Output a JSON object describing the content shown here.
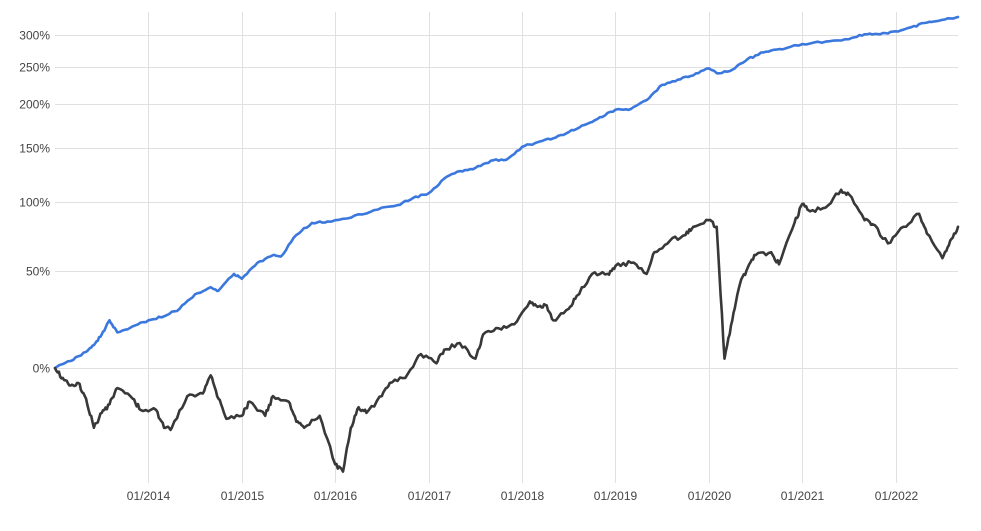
{
  "chart_data": {
    "type": "line",
    "y_scale": "log (1 + return)",
    "grid": true,
    "legend": "none",
    "x_range": [
      "2013-01",
      "2022-09"
    ],
    "y_range_pct": [
      -38,
      340
    ],
    "x_ticks": [
      "01/2014",
      "01/2015",
      "01/2016",
      "01/2017",
      "01/2018",
      "01/2019",
      "01/2020",
      "01/2021",
      "01/2022"
    ],
    "y_ticks": [
      "0%",
      "50%",
      "100%",
      "150%",
      "200%",
      "250%",
      "300%"
    ],
    "series": [
      {
        "color": "#3b78de",
        "points": [
          [
            "2013-01",
            0
          ],
          [
            "2013-03",
            3
          ],
          [
            "2013-05",
            7
          ],
          [
            "2013-06",
            10
          ],
          [
            "2013-07",
            15
          ],
          [
            "2013-08",
            22
          ],
          [
            "2013-09",
            16
          ],
          [
            "2013-11",
            19
          ],
          [
            "2014-01",
            22
          ],
          [
            "2014-03",
            24
          ],
          [
            "2014-05",
            28
          ],
          [
            "2014-07",
            36
          ],
          [
            "2014-09",
            40
          ],
          [
            "2014-10",
            38
          ],
          [
            "2014-12",
            48
          ],
          [
            "2015-01",
            45
          ],
          [
            "2015-03",
            55
          ],
          [
            "2015-05",
            60
          ],
          [
            "2015-06",
            59
          ],
          [
            "2015-08",
            74
          ],
          [
            "2015-10",
            83
          ],
          [
            "2015-12",
            84
          ],
          [
            "2016-03",
            87
          ],
          [
            "2016-06",
            93
          ],
          [
            "2016-09",
            97
          ],
          [
            "2016-11",
            103
          ],
          [
            "2017-01",
            107
          ],
          [
            "2017-03",
            120
          ],
          [
            "2017-05",
            127
          ],
          [
            "2017-07",
            130
          ],
          [
            "2017-09",
            137
          ],
          [
            "2017-11",
            138
          ],
          [
            "2018-01",
            151
          ],
          [
            "2018-03",
            156
          ],
          [
            "2018-05",
            160
          ],
          [
            "2018-07",
            167
          ],
          [
            "2018-09",
            175
          ],
          [
            "2018-11",
            184
          ],
          [
            "2019-01",
            193
          ],
          [
            "2019-03",
            194
          ],
          [
            "2019-05",
            205
          ],
          [
            "2019-07",
            225
          ],
          [
            "2019-09",
            232
          ],
          [
            "2019-11",
            238
          ],
          [
            "2020-01",
            248
          ],
          [
            "2020-02",
            241
          ],
          [
            "2020-04",
            246
          ],
          [
            "2020-06",
            262
          ],
          [
            "2020-08",
            272
          ],
          [
            "2020-10",
            277
          ],
          [
            "2021-01",
            285
          ],
          [
            "2021-04",
            289
          ],
          [
            "2021-07",
            293
          ],
          [
            "2021-09",
            301
          ],
          [
            "2021-11",
            301
          ],
          [
            "2022-01",
            306
          ],
          [
            "2022-03",
            313
          ],
          [
            "2022-05",
            321
          ],
          [
            "2022-07",
            326
          ],
          [
            "2022-09",
            331
          ]
        ]
      },
      {
        "color": "#383838",
        "points": [
          [
            "2013-01",
            0
          ],
          [
            "2013-02",
            -4
          ],
          [
            "2013-03",
            -7
          ],
          [
            "2013-04",
            -6
          ],
          [
            "2013-05",
            -12
          ],
          [
            "2013-06",
            -22
          ],
          [
            "2013-07",
            -17
          ],
          [
            "2013-08",
            -14
          ],
          [
            "2013-09",
            -8
          ],
          [
            "2013-11",
            -12
          ],
          [
            "2013-12",
            -16
          ],
          [
            "2014-02",
            -16
          ],
          [
            "2014-03",
            -22
          ],
          [
            "2014-04",
            -22
          ],
          [
            "2014-06",
            -11
          ],
          [
            "2014-08",
            -10
          ],
          [
            "2014-09",
            -3
          ],
          [
            "2014-10",
            -12
          ],
          [
            "2014-11",
            -19
          ],
          [
            "2015-01",
            -18
          ],
          [
            "2015-02",
            -13
          ],
          [
            "2015-04",
            -18
          ],
          [
            "2015-05",
            -11
          ],
          [
            "2015-07",
            -13
          ],
          [
            "2015-08",
            -20
          ],
          [
            "2015-09",
            -22
          ],
          [
            "2015-11",
            -18
          ],
          [
            "2016-01",
            -33
          ],
          [
            "2016-02",
            -35
          ],
          [
            "2016-03",
            -22
          ],
          [
            "2016-04",
            -15
          ],
          [
            "2016-05",
            -17
          ],
          [
            "2016-07",
            -11
          ],
          [
            "2016-08",
            -6
          ],
          [
            "2016-10",
            -4
          ],
          [
            "2016-12",
            6
          ],
          [
            "2017-02",
            2
          ],
          [
            "2017-03",
            8
          ],
          [
            "2017-05",
            11
          ],
          [
            "2017-07",
            4
          ],
          [
            "2017-08",
            15
          ],
          [
            "2017-10",
            18
          ],
          [
            "2017-12",
            20
          ],
          [
            "2018-02",
            32
          ],
          [
            "2018-03",
            29
          ],
          [
            "2018-04",
            30
          ],
          [
            "2018-05",
            22
          ],
          [
            "2018-07",
            28
          ],
          [
            "2018-08",
            35
          ],
          [
            "2018-10",
            48
          ],
          [
            "2018-12",
            48
          ],
          [
            "2019-01",
            53
          ],
          [
            "2019-03",
            55
          ],
          [
            "2019-05",
            48
          ],
          [
            "2019-06",
            62
          ],
          [
            "2019-08",
            70
          ],
          [
            "2019-10",
            74
          ],
          [
            "2019-11",
            80
          ],
          [
            "2020-01",
            85
          ],
          [
            "2020-02",
            80
          ],
          [
            "2020-03",
            4
          ],
          [
            "2020-04",
            22
          ],
          [
            "2020-05",
            42
          ],
          [
            "2020-06",
            52
          ],
          [
            "2020-07",
            60
          ],
          [
            "2020-09",
            62
          ],
          [
            "2020-10",
            54
          ],
          [
            "2020-12",
            83
          ],
          [
            "2021-01",
            98
          ],
          [
            "2021-02",
            92
          ],
          [
            "2021-04",
            95
          ],
          [
            "2021-06",
            110
          ],
          [
            "2021-07",
            106
          ],
          [
            "2021-09",
            85
          ],
          [
            "2021-10",
            82
          ],
          [
            "2021-12",
            68
          ],
          [
            "2022-02",
            80
          ],
          [
            "2022-04",
            90
          ],
          [
            "2022-05",
            75
          ],
          [
            "2022-07",
            58
          ],
          [
            "2022-08",
            70
          ],
          [
            "2022-09",
            80
          ]
        ]
      }
    ]
  }
}
